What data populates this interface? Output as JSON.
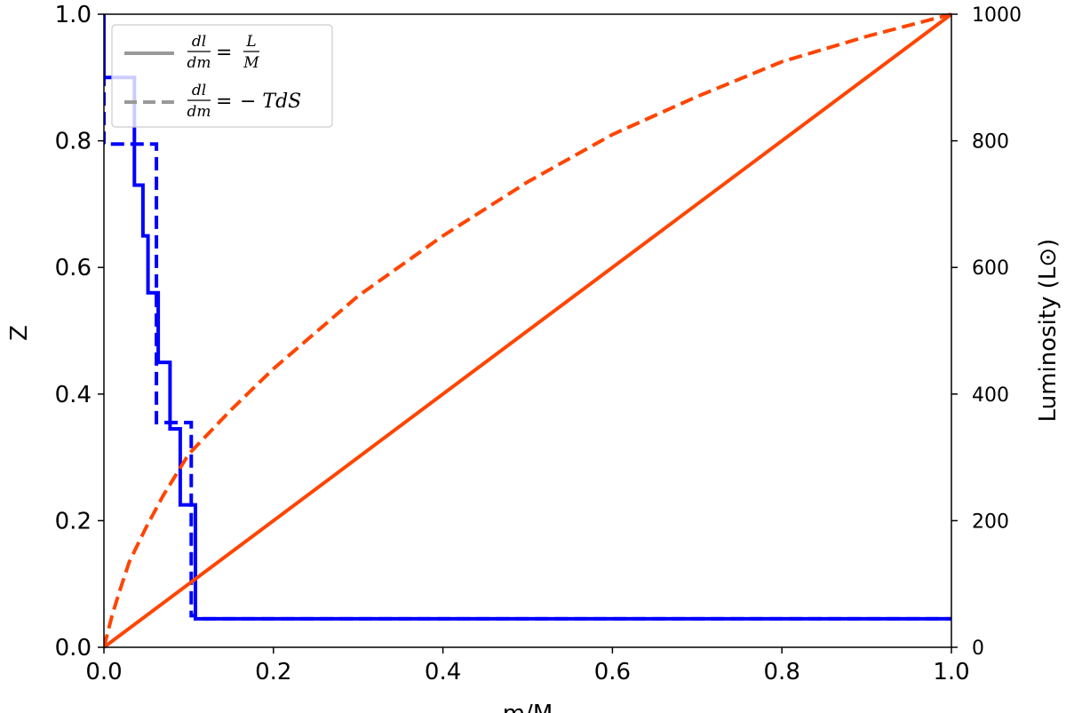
{
  "chart_data": {
    "type": "line",
    "xlabel": "m/M",
    "ylabel_left": "Z",
    "ylabel_right": "Luminosity (L⊙)",
    "xlim": [
      0.0,
      1.0
    ],
    "ylim_left": [
      0.0,
      1.0
    ],
    "ylim_right": [
      0,
      1000
    ],
    "x_ticks": [
      "0.0",
      "0.2",
      "0.4",
      "0.6",
      "0.8",
      "1.0"
    ],
    "y_left_ticks": [
      "0.0",
      "0.2",
      "0.4",
      "0.6",
      "0.8",
      "1.0"
    ],
    "y_right_ticks": [
      "0",
      "200",
      "400",
      "600",
      "800",
      "1000"
    ],
    "grid": false,
    "legend": {
      "placement": "top-left",
      "entries": [
        {
          "style": "solid",
          "color": "#999999",
          "lhs_num": "dl",
          "lhs_den": "dm",
          "eq": "=",
          "rhs_num": "L",
          "rhs_den": "M"
        },
        {
          "style": "dashed",
          "color": "#999999",
          "lhs_num": "dl",
          "lhs_den": "dm",
          "eq": "=",
          "rhs": "− TdS"
        }
      ]
    },
    "series": [
      {
        "axis": "left",
        "color": "#0000ff",
        "style": "solid",
        "shape": "step",
        "points": [
          [
            0.0,
            1.0
          ],
          [
            0.0,
            0.9
          ],
          [
            0.036,
            0.9
          ],
          [
            0.036,
            0.73
          ],
          [
            0.046,
            0.73
          ],
          [
            0.046,
            0.65
          ],
          [
            0.052,
            0.65
          ],
          [
            0.052,
            0.56
          ],
          [
            0.064,
            0.56
          ],
          [
            0.064,
            0.45
          ],
          [
            0.078,
            0.45
          ],
          [
            0.078,
            0.345
          ],
          [
            0.09,
            0.345
          ],
          [
            0.09,
            0.225
          ],
          [
            0.108,
            0.225
          ],
          [
            0.108,
            0.045
          ],
          [
            1.0,
            0.045
          ]
        ]
      },
      {
        "axis": "left",
        "color": "#0000ff",
        "style": "dashed",
        "shape": "step",
        "points": [
          [
            0.0,
            1.0
          ],
          [
            0.0,
            0.795
          ],
          [
            0.062,
            0.795
          ],
          [
            0.062,
            0.355
          ],
          [
            0.103,
            0.355
          ],
          [
            0.103,
            0.05
          ],
          [
            0.108,
            0.05
          ],
          [
            0.108,
            0.045
          ],
          [
            1.0,
            0.045
          ]
        ]
      },
      {
        "axis": "right",
        "color": "#ff4500",
        "style": "solid",
        "shape": "line",
        "points": [
          [
            0.0,
            0
          ],
          [
            1.0,
            1000
          ]
        ]
      },
      {
        "axis": "right",
        "color": "#ff4500",
        "style": "dashed",
        "shape": "curve",
        "points": [
          [
            0.0,
            0
          ],
          [
            0.01,
            52
          ],
          [
            0.02,
            95
          ],
          [
            0.03,
            135
          ],
          [
            0.05,
            190
          ],
          [
            0.07,
            240
          ],
          [
            0.1,
            305
          ],
          [
            0.15,
            375
          ],
          [
            0.2,
            440
          ],
          [
            0.3,
            555
          ],
          [
            0.4,
            650
          ],
          [
            0.5,
            735
          ],
          [
            0.6,
            810
          ],
          [
            0.7,
            870
          ],
          [
            0.8,
            925
          ],
          [
            0.9,
            965
          ],
          [
            1.0,
            1000
          ]
        ]
      }
    ]
  }
}
